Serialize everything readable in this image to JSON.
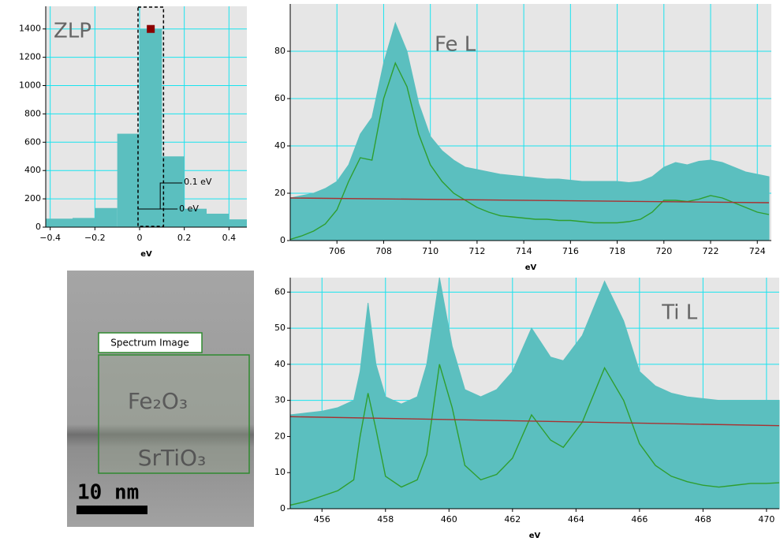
{
  "chart_data": [
    {
      "type": "histogram",
      "annotations": [
        "ZLP",
        "0.1 eV",
        "0 eV"
      ],
      "x_label": "eV",
      "bins": [
        -0.42,
        -0.3,
        -0.2,
        -0.1,
        0,
        0.1,
        0.2,
        0.3,
        0.4,
        0.48
      ],
      "values": [
        60,
        65,
        135,
        660,
        1400,
        500,
        130,
        95,
        55
      ],
      "color": "#5bbfbf",
      "xlim": [
        -0.42,
        0.48
      ],
      "ylim": [
        0,
        1560
      ],
      "xticks": [
        {
          "value": -0.4,
          "label": "−0.4"
        },
        {
          "value": -0.2,
          "label": "−0.2"
        },
        0,
        0.2,
        0.4
      ],
      "yticks": [
        0,
        200,
        400,
        600,
        800,
        1000,
        1200,
        1400
      ],
      "grid": true
    },
    {
      "type": "area",
      "annotation": "Fe L",
      "x_label": "eV",
      "x": [
        704,
        704.5,
        705,
        705.5,
        706,
        706.5,
        707,
        707.5,
        708,
        708.5,
        709,
        709.5,
        710,
        710.5,
        711,
        711.5,
        712,
        712.5,
        713,
        713.5,
        714,
        714.5,
        715,
        715.5,
        716,
        716.5,
        717,
        717.5,
        718,
        718.5,
        719,
        719.5,
        720,
        720.5,
        721,
        721.5,
        722,
        722.5,
        723,
        723.5,
        724,
        724.5
      ],
      "series": [
        {
          "color": "#5bbfbf",
          "fill": true,
          "values": [
            18,
            19,
            20,
            22,
            25,
            32,
            45,
            52,
            75,
            92,
            80,
            58,
            44,
            38,
            34,
            31,
            30,
            29,
            28,
            27.5,
            27,
            26.5,
            26,
            26,
            25.5,
            25,
            25,
            25,
            25,
            24.5,
            25,
            27,
            31,
            33,
            32,
            33.5,
            34,
            33,
            31,
            29,
            28,
            27
          ]
        },
        {
          "color": "#2f9e2f",
          "fill": false,
          "values": [
            0.5,
            2,
            4,
            7,
            13,
            25,
            35,
            34,
            60,
            75,
            65,
            45,
            32,
            25,
            20,
            17,
            14,
            12,
            10.5,
            10,
            9.5,
            9,
            9,
            8.5,
            8.5,
            8,
            7.5,
            7.5,
            7.5,
            8,
            9,
            12,
            17,
            17,
            16.5,
            17.5,
            19,
            18,
            16,
            14,
            12,
            11
          ]
        },
        {
          "color": "#a83232",
          "fill": false,
          "x": [
            704,
            724.5
          ],
          "values": [
            18,
            16
          ]
        }
      ],
      "xlim": [
        704,
        724.6
      ],
      "ylim": [
        0,
        100
      ],
      "xticks": [
        706,
        708,
        710,
        712,
        714,
        716,
        718,
        720,
        722,
        724
      ],
      "yticks": [
        0,
        20,
        40,
        60,
        80
      ],
      "grid": true
    },
    {
      "type": "area",
      "annotation": "Ti L",
      "x_label": "eV",
      "x": [
        455,
        455.5,
        456,
        456.5,
        457,
        457.2,
        457.45,
        457.7,
        458,
        458.5,
        459,
        459.3,
        459.7,
        460.1,
        460.5,
        461,
        461.5,
        462,
        462.6,
        463.2,
        463.6,
        464.2,
        464.9,
        465.5,
        466,
        466.5,
        467,
        467.5,
        468,
        468.5,
        469,
        469.5,
        470,
        470.4
      ],
      "series": [
        {
          "color": "#5bbfbf",
          "fill": true,
          "values": [
            26,
            26.5,
            27,
            28,
            30,
            38,
            57,
            40,
            31,
            29,
            31,
            40,
            64,
            45,
            33,
            31,
            33,
            38,
            50,
            42,
            41,
            48,
            63,
            52,
            38,
            34,
            32,
            31,
            30.5,
            30,
            30,
            30,
            30,
            30
          ]
        },
        {
          "color": "#2f9e2f",
          "fill": false,
          "values": [
            1,
            2,
            3.5,
            5,
            8,
            20,
            32,
            22,
            9,
            6,
            8,
            15,
            40,
            28,
            12,
            8,
            9.5,
            14,
            26,
            19,
            17,
            24,
            39,
            30,
            18,
            12,
            9,
            7.5,
            6.5,
            6,
            6.5,
            7,
            7,
            7.2
          ]
        },
        {
          "color": "#a83232",
          "fill": false,
          "x": [
            455,
            470.4
          ],
          "values": [
            25.5,
            23
          ]
        }
      ],
      "xlim": [
        455,
        470.4
      ],
      "ylim": [
        0,
        64
      ],
      "xticks": [
        456,
        458,
        460,
        462,
        464,
        466,
        468,
        470
      ],
      "yticks": [
        0,
        10,
        20,
        30,
        40,
        50,
        60
      ],
      "grid": true
    }
  ],
  "micrograph": {
    "roi_label": "Spectrum Image",
    "layer_top": "Fe₂O₃",
    "layer_bottom": "SrTiO₃",
    "scale_bar": "10 nm"
  }
}
